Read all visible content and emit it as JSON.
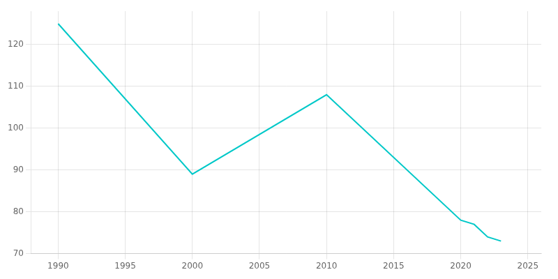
{
  "chart_data": {
    "type": "line",
    "x": [
      1990,
      2000,
      2010,
      2020,
      2021,
      2022,
      2023
    ],
    "values": [
      125,
      89,
      108,
      78,
      77,
      74,
      73
    ],
    "color": "#00C8C8",
    "xlim": [
      1988,
      2026
    ],
    "ylim": [
      70,
      128
    ],
    "xticks": [
      1990,
      1995,
      2000,
      2005,
      2010,
      2015,
      2020,
      2025
    ],
    "yticks": [
      70,
      80,
      90,
      100,
      110,
      120
    ],
    "grid": true
  }
}
